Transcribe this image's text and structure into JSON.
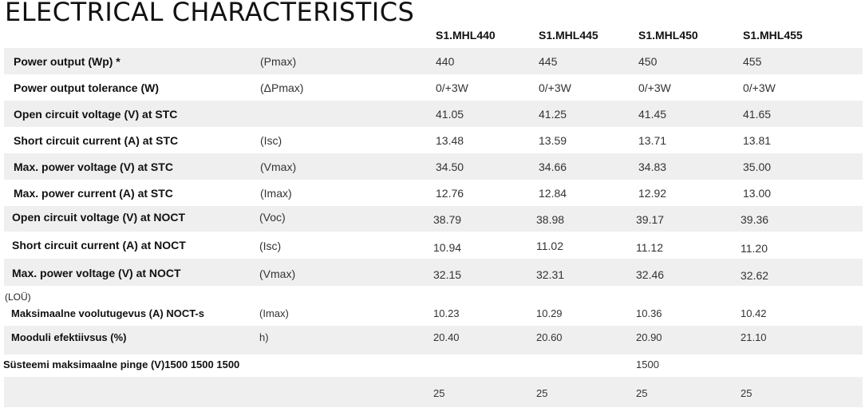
{
  "title": "ELECTRICAL CHARACTERISTICS",
  "models": [
    "S1.MHL440",
    "S1.MHL445",
    "S1.MHL450",
    "S1.MHL455"
  ],
  "rows": [
    {
      "label": "Power output (Wp) *",
      "symbol": "(Pmax)",
      "values": [
        "440",
        "445",
        "450",
        "455"
      ]
    },
    {
      "label": "Power output tolerance (W)",
      "symbol": "(ΔPmax)",
      "values": [
        "0/+3W",
        "0/+3W",
        "0/+3W",
        "0/+3W"
      ]
    },
    {
      "label": "Open circuit voltage (V)  at STC",
      "symbol": "",
      "values": [
        "41.05",
        "41.25",
        "41.45",
        "41.65"
      ]
    },
    {
      "label": "Short circuit current (A) at STC",
      "symbol": "(Isc)",
      "values": [
        "13.48",
        "13.59",
        "13.71",
        "13.81"
      ]
    },
    {
      "label": "Max. power voltage (V) at STC",
      "symbol": "(Vmax)",
      "values": [
        "34.50",
        "34.66",
        "34.83",
        "35.00"
      ]
    },
    {
      "label": "Max. power current (A)  at STC",
      "symbol": "(Imax)",
      "values": [
        "12.76",
        "12.84",
        "12.92",
        "13.00"
      ]
    },
    {
      "label": "Open circuit voltage (V) at NOCT",
      "symbol": "(Voc)",
      "values": [
        "38.79",
        "38.98",
        "39.17",
        "39.36"
      ]
    },
    {
      "label": "Short circuit current (A) at NOCT",
      "symbol": "(Isc)",
      "values": [
        "10.94",
        "11.02",
        "11.12",
        "11.20"
      ]
    },
    {
      "label": "Max. power voltage (V) at NOCT",
      "symbol": "(Vmax)",
      "values": [
        "32.15",
        "32.31",
        "32.46",
        "32.62"
      ]
    }
  ],
  "loou_note": "(LOÜ)",
  "rows_et": [
    {
      "label": "Maksimaalne voolutugevus (A) NOCT-s",
      "symbol": "(Imax)",
      "values": [
        "10.23",
        "10.29",
        "10.36",
        "10.42"
      ]
    },
    {
      "label": "Mooduli efektiivsus (%)",
      "symbol": "h)",
      "values": [
        "20.40",
        "20.60",
        "20.90",
        "21.10"
      ]
    }
  ],
  "system_voltage": {
    "label": "Süsteemi maksimaalne pinge (V)1500 1500 1500",
    "value": "1500"
  },
  "last_row": {
    "values": [
      "25",
      "25",
      "25",
      "25"
    ]
  }
}
